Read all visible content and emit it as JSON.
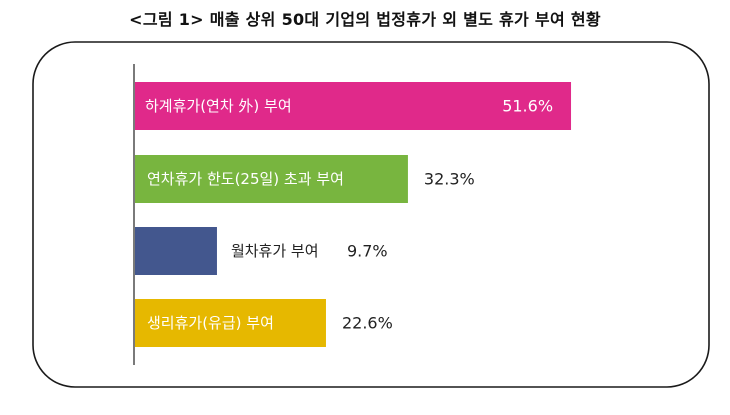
{
  "title": "<그림 1> 매출 상위 50대 기업의 법정휴가 외 별도 휴가 부여 현황",
  "chart_data": {
    "type": "bar",
    "orientation": "horizontal",
    "title": "<그림 1> 매출 상위 50대 기업의 법정휴가 외 별도 휴가 부여 현황",
    "xlabel": "",
    "ylabel": "",
    "xlim": [
      0,
      60
    ],
    "grid": false,
    "legend": "none",
    "categories": [
      "하계휴가(연차 外) 부여",
      "연차휴가 한도(25일) 초과 부여",
      "월차휴가 부여",
      "생리휴가(유급) 부여"
    ],
    "values": [
      51.6,
      32.3,
      9.7,
      22.6
    ],
    "value_labels": [
      "51.6%",
      "32.3%",
      "9.7%",
      "22.6%"
    ],
    "colors": [
      "#E0298A",
      "#78B53F",
      "#43578E",
      "#E6B800"
    ]
  }
}
